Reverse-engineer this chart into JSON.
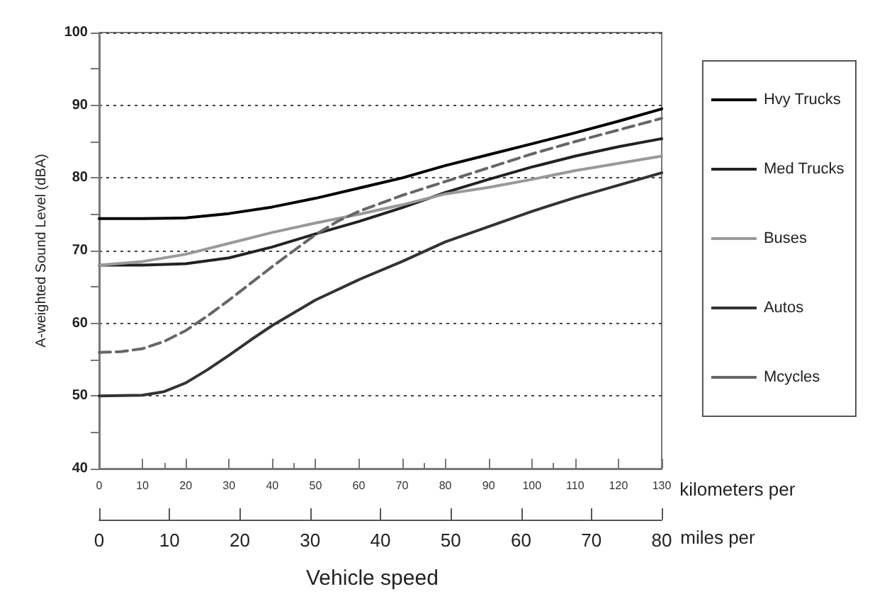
{
  "chart_data": {
    "type": "line",
    "ylabel": "A-weighted Sound Level (dBA)",
    "xlabel": "kilometers per",
    "x2label": "miles per",
    "annotations": [
      "Vehicle speed"
    ],
    "xlim": [
      0,
      130
    ],
    "xticks": [
      0,
      10,
      20,
      30,
      40,
      50,
      60,
      70,
      80,
      90,
      100,
      110,
      120,
      130
    ],
    "x2lim": [
      0,
      80
    ],
    "x2ticks": [
      0,
      10,
      20,
      30,
      40,
      50,
      60,
      70,
      80
    ],
    "ylim": [
      40,
      100
    ],
    "yticks": [
      40,
      50,
      60,
      70,
      80,
      90,
      100
    ],
    "grid": "y",
    "legend": "right",
    "marker": "none",
    "series": [
      {
        "name": "Hvy Trucks",
        "color": "#000000",
        "x": [
          0,
          10,
          20,
          30,
          40,
          50,
          60,
          70,
          80,
          90,
          100,
          110,
          120,
          130
        ],
        "values": [
          74.4,
          74.4,
          74.5,
          75.1,
          76,
          77.2,
          78.6,
          80,
          81.7,
          83.2,
          84.7,
          86.2,
          87.8,
          89.5
        ]
      },
      {
        "name": "Med Trucks",
        "color": "#222222",
        "x": [
          0,
          10,
          20,
          30,
          40,
          50,
          60,
          70,
          80,
          90,
          100,
          110,
          120,
          130
        ],
        "values": [
          68,
          68,
          68.2,
          69,
          70.5,
          72.3,
          74,
          75.9,
          78,
          79.8,
          81.5,
          83,
          84.3,
          85.4
        ]
      },
      {
        "name": "Buses",
        "color": "#999999",
        "x": [
          0,
          10,
          20,
          30,
          40,
          50,
          60,
          70,
          80,
          90,
          100,
          110,
          120,
          130
        ],
        "values": [
          68,
          68.5,
          69.5,
          71,
          72.5,
          73.8,
          75,
          76.3,
          77.8,
          78.7,
          79.8,
          81,
          82,
          83
        ]
      },
      {
        "name": "Autos",
        "color": "#333333",
        "x": [
          0,
          10,
          15,
          20,
          25,
          30,
          35,
          40,
          50,
          60,
          70,
          80,
          90,
          100,
          110,
          120,
          130
        ],
        "values": [
          50,
          50.1,
          50.6,
          51.8,
          53.6,
          55.6,
          57.7,
          59.7,
          63.2,
          66,
          68.5,
          71.2,
          73.3,
          75.4,
          77.3,
          79,
          80.7
        ]
      },
      {
        "name": "Mcycles",
        "color": "#666666",
        "line_style": "dashed",
        "x": [
          0,
          5,
          10,
          15,
          20,
          25,
          30,
          35,
          40,
          45,
          50,
          55,
          60,
          70,
          80,
          90,
          100,
          110,
          120,
          130
        ],
        "values": [
          56,
          56.1,
          56.5,
          57.5,
          59,
          61,
          63.2,
          65.5,
          67.8,
          70,
          72.2,
          74,
          75.4,
          77.6,
          79.5,
          81.4,
          83.3,
          85,
          86.6,
          88.2
        ]
      }
    ]
  }
}
